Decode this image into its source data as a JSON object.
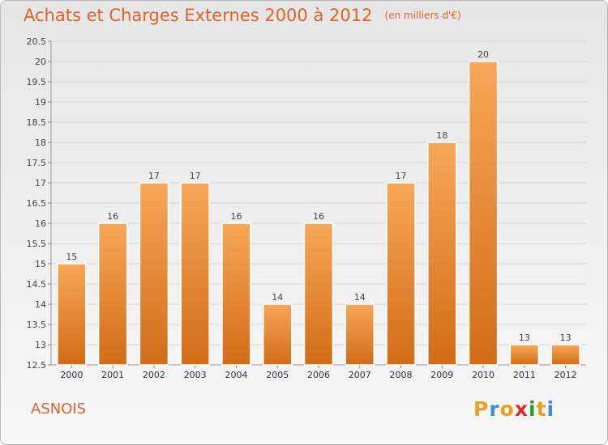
{
  "header": {
    "title": "Achats et Charges Externes 2000 à 2012",
    "unit": "(en milliers d'€)"
  },
  "footer": {
    "commune": "ASNOIS",
    "logo_letters": [
      "P",
      "r",
      "o",
      "x",
      "i",
      "t",
      "i"
    ],
    "logo_colors": [
      "#e8a020",
      "#3c8dd4",
      "#e8a020",
      "#e02828",
      "#2d9a2d",
      "#e8a020",
      "#3c8dd4"
    ]
  },
  "colors": {
    "bar_top": "#f7a75a",
    "bar_bottom": "#d26c16",
    "accent": "#e0622a",
    "grid": "#d4d4d4"
  },
  "chart_data": {
    "type": "bar",
    "title": "Achats et Charges Externes 2000 à 2012",
    "subtitle": "(en milliers d'€)",
    "categories": [
      "2000",
      "2001",
      "2002",
      "2003",
      "2004",
      "2005",
      "2006",
      "2007",
      "2008",
      "2009",
      "2010",
      "2011",
      "2012"
    ],
    "values": [
      15,
      16,
      17,
      17,
      16,
      14,
      16,
      14,
      17,
      18,
      20,
      13,
      13
    ],
    "data_labels": [
      "15",
      "16",
      "17",
      "17",
      "16",
      "14",
      "16",
      "14",
      "17",
      "18",
      "20",
      "13",
      "13"
    ],
    "yticks": [
      "12.5",
      "13",
      "13.5",
      "14",
      "14.5",
      "15",
      "15.5",
      "16",
      "16.5",
      "17",
      "17.5",
      "18",
      "18.5",
      "19",
      "19.5",
      "20",
      "20.5"
    ],
    "ylim": [
      12.5,
      20.5
    ],
    "grid": true,
    "legend": "none"
  }
}
